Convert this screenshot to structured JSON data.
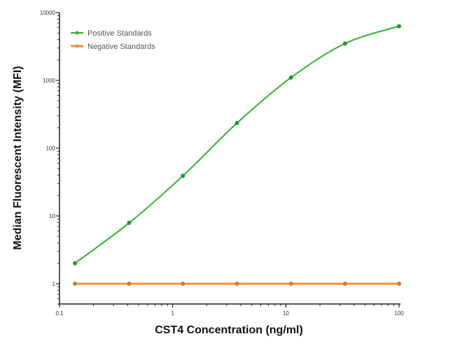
{
  "chart_data": {
    "type": "line",
    "title": "",
    "xlabel": "CST4 Concentration (ng/ml)",
    "ylabel": "Median  Fluorescent Intensity  (MFI)",
    "xscale": "log",
    "yscale": "log",
    "xlim": [
      0.1,
      100
    ],
    "ylim": [
      0.5,
      10000
    ],
    "xticks": [
      {
        "v": 0.1,
        "label": "0.1"
      },
      {
        "v": 1,
        "label": "1"
      },
      {
        "v": 10,
        "label": "10"
      },
      {
        "v": 100,
        "label": "100"
      }
    ],
    "yticks": [
      {
        "v": 1,
        "label": "1"
      },
      {
        "v": 10,
        "label": "10"
      },
      {
        "v": 100,
        "label": "100"
      },
      {
        "v": 1000,
        "label": "1000"
      },
      {
        "v": 10000,
        "label": "10000"
      }
    ],
    "grid": false,
    "legend_placement": "top-left",
    "series": [
      {
        "name": "Positive Standards",
        "color": "#2db52d",
        "x": [
          0.137,
          0.412,
          1.23,
          3.7,
          11.1,
          33.3,
          100
        ],
        "y": [
          2.0,
          7.9,
          39,
          235,
          1100,
          3500,
          6300
        ]
      },
      {
        "name": "Negative Standards",
        "color": "#f0913a",
        "x": [
          0.137,
          0.412,
          1.23,
          3.7,
          11.1,
          33.3,
          100
        ],
        "y": [
          1,
          1,
          1,
          1,
          1,
          1,
          1
        ]
      }
    ]
  }
}
